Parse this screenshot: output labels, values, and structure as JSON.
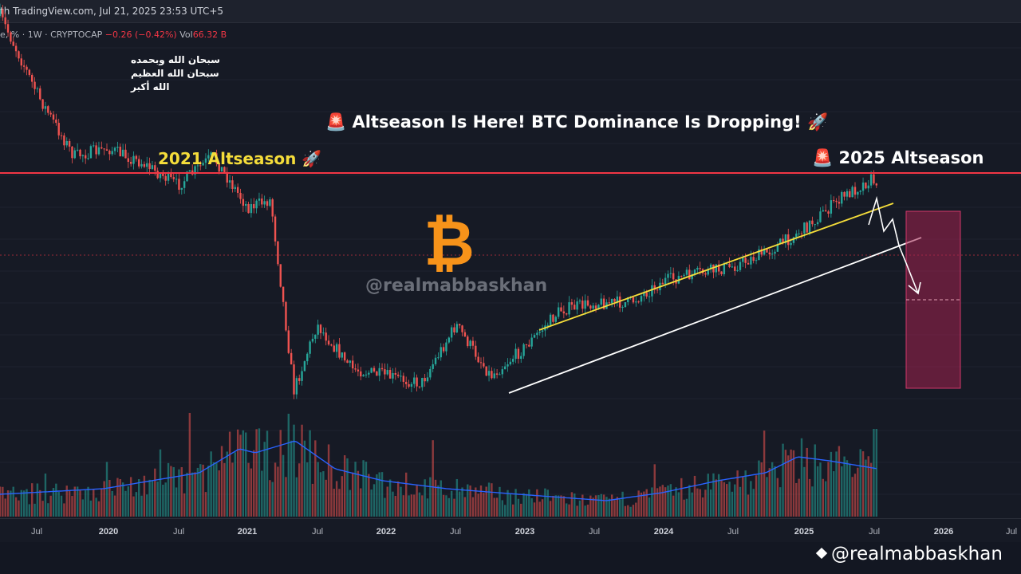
{
  "header": {
    "title_fragment": "th TradingView.com, Jul 21, 2025 23:53 UTC+5"
  },
  "legend": {
    "symbol_fragment": "e, % · 1W · CRYPTOCAP",
    "change": "−0.26 (−0.42%)",
    "vol_label": "Vol",
    "vol_value": "66.32 B"
  },
  "annotations": {
    "arabic_lines": [
      "سبحان الله وبحمده",
      "سبحان الله العظيم",
      "الله أكبر"
    ],
    "headline": "🚨 Altseason Is Here! BTC Dominance Is Dropping! 🚀",
    "label_2021": "2021 Altseason 🚀",
    "label_2025": "🚨 2025 Altseason",
    "watermark_center": "@realmabbaskhan",
    "watermark_bottom": "@realmabbaskhan",
    "bitcoin_symbol": "₿"
  },
  "colors": {
    "background": "#161a25",
    "up": "#26a69a",
    "down": "#ef5350",
    "resistance": "#f23645",
    "channel_top": "#f5dd3a",
    "channel_bottom": "#ffffff",
    "volume_ma": "#2962ff",
    "bitcoin": "#f7931a",
    "target_box": "#a3224f"
  },
  "chart_data": {
    "type": "candlestick",
    "timeframe": "1W",
    "x_ticks": [
      "Jul",
      "2020",
      "Jul",
      "2021",
      "Jul",
      "2022",
      "Jul",
      "2023",
      "Jul",
      "2024",
      "Jul",
      "2025",
      "Jul",
      "2026",
      "Jul"
    ],
    "price_path": [
      [
        "2019-01",
        79
      ],
      [
        "2019-04",
        70
      ],
      [
        "2019-07",
        60
      ],
      [
        "2019-10",
        52
      ],
      [
        "2020-01",
        53
      ],
      [
        "2020-04",
        51
      ],
      [
        "2020-07",
        48
      ],
      [
        "2020-10",
        52
      ],
      [
        "2021-01",
        45
      ],
      [
        "2021-03",
        46
      ],
      [
        "2021-05",
        20
      ],
      [
        "2021-07",
        29
      ],
      [
        "2021-10",
        23
      ],
      [
        "2022-01",
        22
      ],
      [
        "2022-04",
        21
      ],
      [
        "2022-07",
        29
      ],
      [
        "2022-10",
        22
      ],
      [
        "2023-01",
        26
      ],
      [
        "2023-04",
        31
      ],
      [
        "2023-07",
        32
      ],
      [
        "2023-10",
        32
      ],
      [
        "2024-01",
        35
      ],
      [
        "2024-04",
        36
      ],
      [
        "2024-07",
        37
      ],
      [
        "2024-10",
        39
      ],
      [
        "2025-01",
        42
      ],
      [
        "2025-04",
        46
      ],
      [
        "2025-07",
        49
      ],
      [
        "2025-07-21",
        45
      ]
    ],
    "volume_shape": "low 2019-2020, spike early 2021, decline through 2023, rising 2024-2025, spike Jul 2025",
    "resistance_level": "2021 Altseason high",
    "channel": "rising channel from late 2022 to Jul 2025 (yellow upper, white lower)",
    "projection": "zigzag breakdown below lower channel line, target zone box Jul 2025 - early 2026"
  }
}
